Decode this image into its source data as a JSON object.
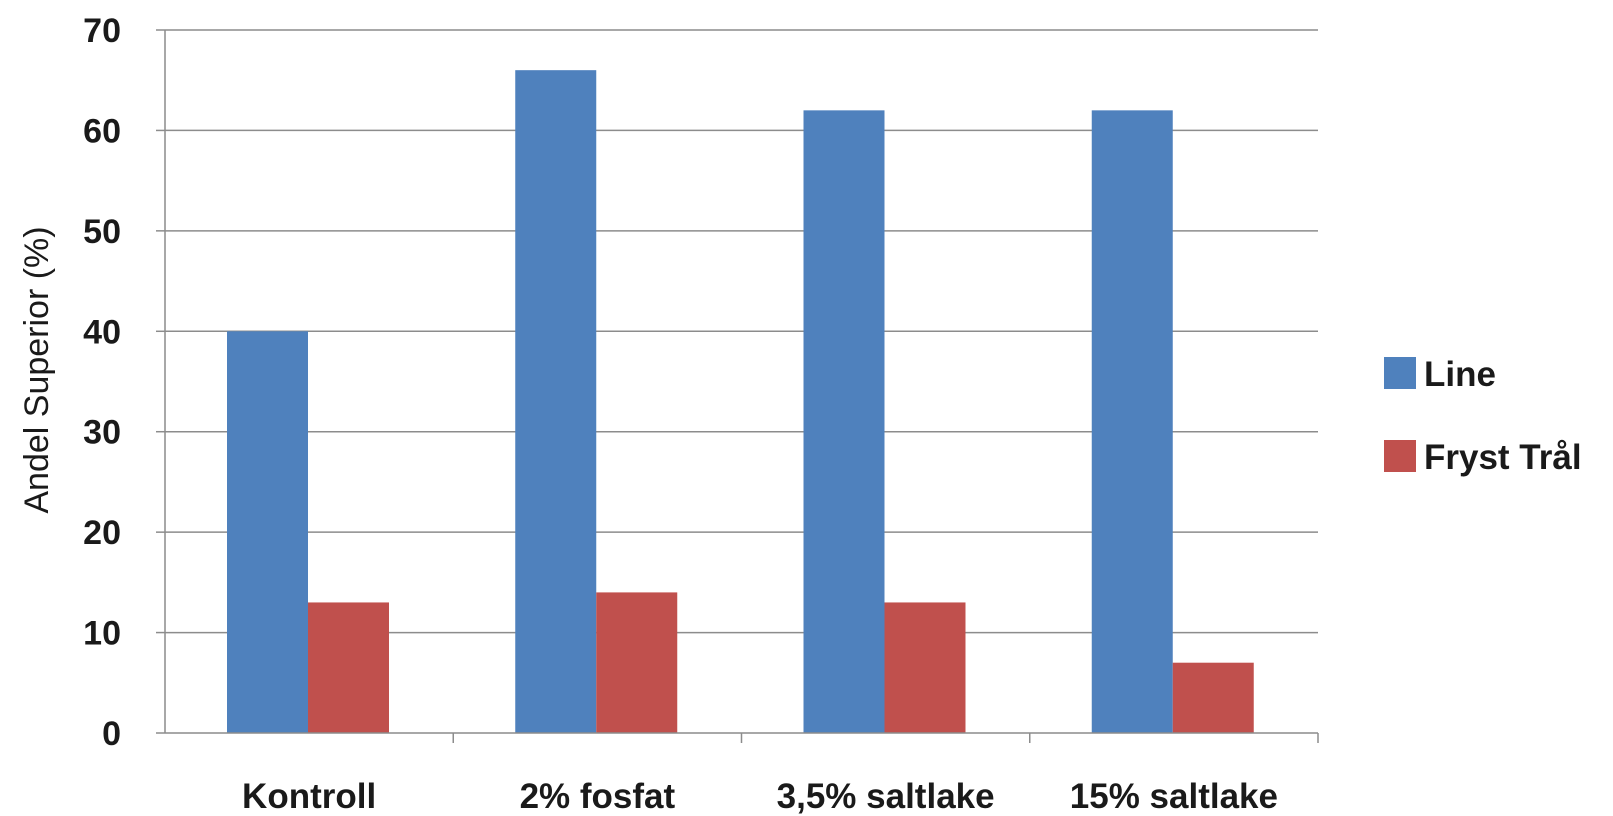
{
  "chart_data": {
    "type": "bar",
    "categories": [
      "Kontroll",
      "2% fosfat",
      "3,5% saltlake",
      "15% saltlake"
    ],
    "series": [
      {
        "name": "Line",
        "values": [
          40,
          66,
          62,
          62
        ],
        "color": "#4f81bd"
      },
      {
        "name": "Fryst Trål",
        "values": [
          13,
          14,
          13,
          7
        ],
        "color": "#c0504d"
      }
    ],
    "xlabel": "",
    "ylabel": "Andel  Superior (%)",
    "ylim": [
      0,
      70
    ],
    "yticks": [
      0,
      10,
      20,
      30,
      40,
      50,
      60,
      70
    ],
    "grid": true,
    "legend_position": "right"
  }
}
